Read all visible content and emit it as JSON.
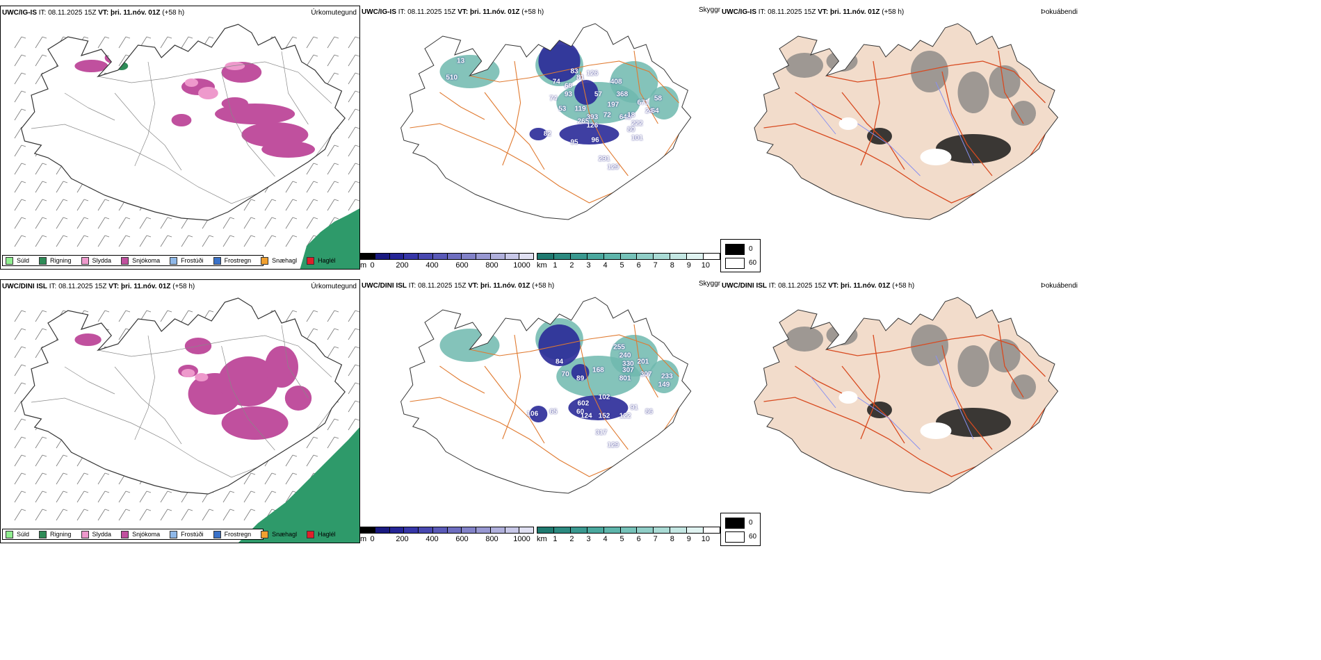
{
  "colors": {
    "sudl": "#90ee90",
    "rigning": "#2e8b57",
    "slydda": "#ee99cc",
    "snjokoma": "#c0509e",
    "frostudi": "#8fb8e8",
    "frostregn": "#3a72c8",
    "snaehagl": "#f0a030",
    "hagl": "#e0202a",
    "road": "#e07a30",
    "coast": "#333333",
    "river": "#8890f0",
    "sea_green": "#2e9a6a"
  },
  "rows": [
    {
      "model": "UWC/IG-IS",
      "it": "IT: 08.11.2025 15Z",
      "vt_label": "VT:",
      "vt": "þri. 11.nóv. 01Z",
      "lead": "(+58 h)",
      "numbers": [
        "53",
        "74",
        "68",
        "74",
        "83",
        "93",
        "81",
        "119",
        "126",
        "408",
        "368",
        "671",
        "57",
        "197",
        "393",
        "72",
        "648",
        "18",
        "265",
        "126",
        "222",
        "80",
        "101",
        "82",
        "95",
        "96",
        "291",
        "510",
        "13",
        "24",
        "64",
        "58",
        "129"
      ]
    },
    {
      "model": "UWC/DINI ISL",
      "it": "IT: 08.11.2025 15Z",
      "vt_label": "VT:",
      "vt": "þri. 11.nóv. 01Z",
      "lead": "(+58 h)",
      "numbers": [
        "84",
        "70",
        "89",
        "255",
        "240",
        "330",
        "307",
        "201",
        "307",
        "801",
        "168",
        "102",
        "602",
        "60",
        "124",
        "152",
        "122",
        "91",
        "86",
        "149",
        "233",
        "65",
        "106",
        "317",
        "129"
      ]
    }
  ],
  "titles": {
    "precip_type": "Úrkomutegund",
    "cloud_base": "Skyggni",
    "fog": "Þokuábendi"
  },
  "precip_legend": [
    {
      "key": "sudl",
      "label": "Súld"
    },
    {
      "key": "rigning",
      "label": "Rigning"
    },
    {
      "key": "slydda",
      "label": "Slydda"
    },
    {
      "key": "snjokoma",
      "label": "Snjókoma"
    },
    {
      "key": "frostudi",
      "label": "Frostúði"
    },
    {
      "key": "frostregn",
      "label": "Frostregn"
    },
    {
      "key": "snaehagl",
      "label": "Snæhagl"
    },
    {
      "key": "hagl",
      "label": "Haglél"
    }
  ],
  "cbar_m": {
    "unit": "m",
    "labels": [
      "0",
      "200",
      "400",
      "600",
      "800",
      "1000"
    ],
    "colors": [
      "#000000",
      "#1a1a80",
      "#252596",
      "#3636a8",
      "#4848b0",
      "#5a5ab8",
      "#6e6ec0",
      "#8282c8",
      "#9898d2",
      "#b0b0dc",
      "#c8c8e8",
      "#e0e0f2"
    ]
  },
  "cbar_km": {
    "unit": "km",
    "labels": [
      "1",
      "2",
      "3",
      "4",
      "5",
      "6",
      "7",
      "8",
      "9",
      "10"
    ],
    "colors": [
      "#1f7a70",
      "#2c8a80",
      "#3a9990",
      "#4aa89e",
      "#5eb5ab",
      "#76c2b9",
      "#90cec7",
      "#aadbd5",
      "#c4e7e3",
      "#e0f3f1",
      "#ffffff"
    ]
  },
  "fog_legend": {
    "black": "0",
    "white": "60"
  }
}
